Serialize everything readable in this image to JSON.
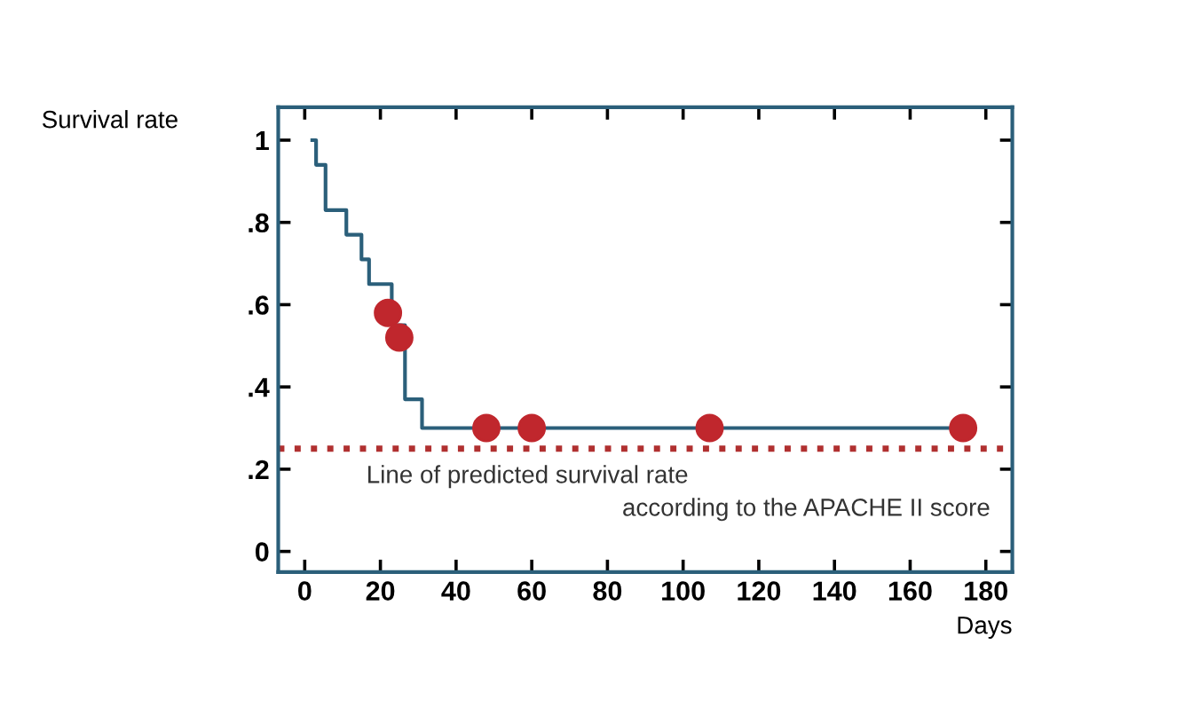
{
  "chart_data": {
    "type": "step",
    "ylabel": "Survival rate",
    "xlabel": "Days",
    "xlim": [
      -7,
      187
    ],
    "ylim": [
      -0.05,
      1.08
    ],
    "xticks": [
      0,
      20,
      40,
      60,
      80,
      100,
      120,
      140,
      160,
      180
    ],
    "yticks": [
      0,
      {
        "value": 0.2,
        "label": ".2"
      },
      {
        "value": 0.4,
        "label": ".4"
      },
      {
        "value": 0.6,
        "label": ".6"
      },
      {
        "value": 0.8,
        "label": ".8"
      },
      1
    ],
    "grid": false,
    "legend": false,
    "series": [
      {
        "color": "#2b5f7a",
        "x": [
          2,
          3,
          5.5,
          11,
          15,
          17,
          23,
          26.5,
          31,
          176
        ],
        "values": [
          1.0,
          0.94,
          0.83,
          0.77,
          0.71,
          0.65,
          0.55,
          0.37,
          0.3,
          0.3
        ]
      },
      {
        "type": "scatter",
        "color": "#c0272d",
        "marker": "circle",
        "x": [
          22,
          25,
          48,
          60,
          107,
          174
        ],
        "values": [
          0.58,
          0.52,
          0.3,
          0.3,
          0.3,
          0.3
        ]
      }
    ],
    "ref_lines": [
      {
        "axis": "y",
        "value": 0.25,
        "color": "#b03030",
        "line_style": "dotted",
        "label": "Line of predicted survival rate\naccording to the APACHE II score"
      }
    ]
  }
}
